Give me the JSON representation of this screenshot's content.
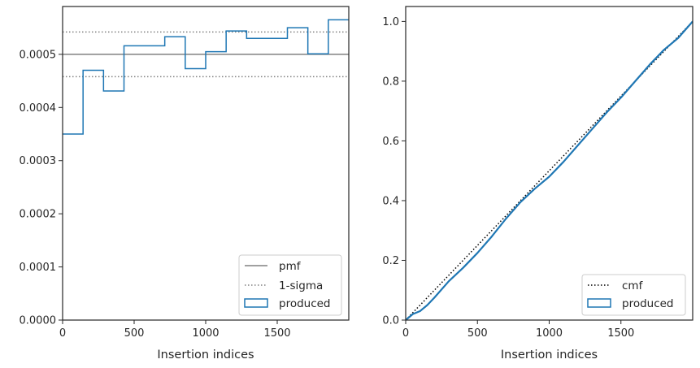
{
  "chart_data": [
    {
      "type": "line",
      "xlabel": "Insertion indices",
      "ylabel": "",
      "xlim": [
        0,
        2000
      ],
      "ylim": [
        0,
        0.00059
      ],
      "xticks": [
        0,
        500,
        1000,
        1500
      ],
      "xtick_labels": [
        "0",
        "500",
        "1000",
        "1500"
      ],
      "yticks": [
        0,
        0.0001,
        0.0002,
        0.0003,
        0.0004,
        0.0005
      ],
      "ytick_labels": [
        "0.0000",
        "0.0001",
        "0.0002",
        "0.0003",
        "0.0004",
        "0.0005"
      ],
      "grid": false,
      "legend_position": "lower-right",
      "pmf": 0.0005,
      "sigma_band": [
        0.000458,
        0.000542
      ],
      "histogram": {
        "bin_edges": [
          0,
          143,
          286,
          429,
          571,
          714,
          857,
          1000,
          1143,
          1286,
          1429,
          1571,
          1714,
          1857,
          2000
        ],
        "values": [
          0.00035,
          0.00047,
          0.000431,
          0.000516,
          0.000516,
          0.000533,
          0.000473,
          0.000505,
          0.000544,
          0.00053,
          0.00053,
          0.00055,
          0.000501,
          0.000565
        ]
      },
      "legend": [
        "pmf",
        "1-sigma",
        "produced"
      ],
      "colors": {
        "pmf": "#808080",
        "sigma": "#808080",
        "produced": "#1f77b4"
      }
    },
    {
      "type": "line",
      "xlabel": "Insertion indices",
      "ylabel": "",
      "xlim": [
        0,
        2000
      ],
      "ylim": [
        0,
        1.05
      ],
      "xticks": [
        0,
        500,
        1000,
        1500
      ],
      "xtick_labels": [
        "0",
        "500",
        "1000",
        "1500"
      ],
      "yticks": [
        0,
        0.2,
        0.4,
        0.6,
        0.8,
        1.0
      ],
      "ytick_labels": [
        "0.0",
        "0.2",
        "0.4",
        "0.6",
        "0.8",
        "1.0"
      ],
      "grid": false,
      "legend_position": "lower-right",
      "cmf": {
        "x": [
          0,
          2000
        ],
        "y": [
          0,
          1.0
        ]
      },
      "produced": {
        "x": [
          0,
          50,
          100,
          150,
          200,
          300,
          400,
          500,
          600,
          700,
          800,
          900,
          1000,
          1100,
          1200,
          1300,
          1400,
          1500,
          1600,
          1700,
          1800,
          1900,
          2000
        ],
        "y": [
          0,
          0.02,
          0.03,
          0.05,
          0.075,
          0.13,
          0.175,
          0.225,
          0.28,
          0.34,
          0.395,
          0.44,
          0.48,
          0.53,
          0.585,
          0.64,
          0.695,
          0.745,
          0.8,
          0.855,
          0.905,
          0.945,
          1.0
        ]
      },
      "legend": [
        "cmf",
        "produced"
      ],
      "colors": {
        "cmf": "#000000",
        "produced": "#1f77b4"
      }
    }
  ]
}
